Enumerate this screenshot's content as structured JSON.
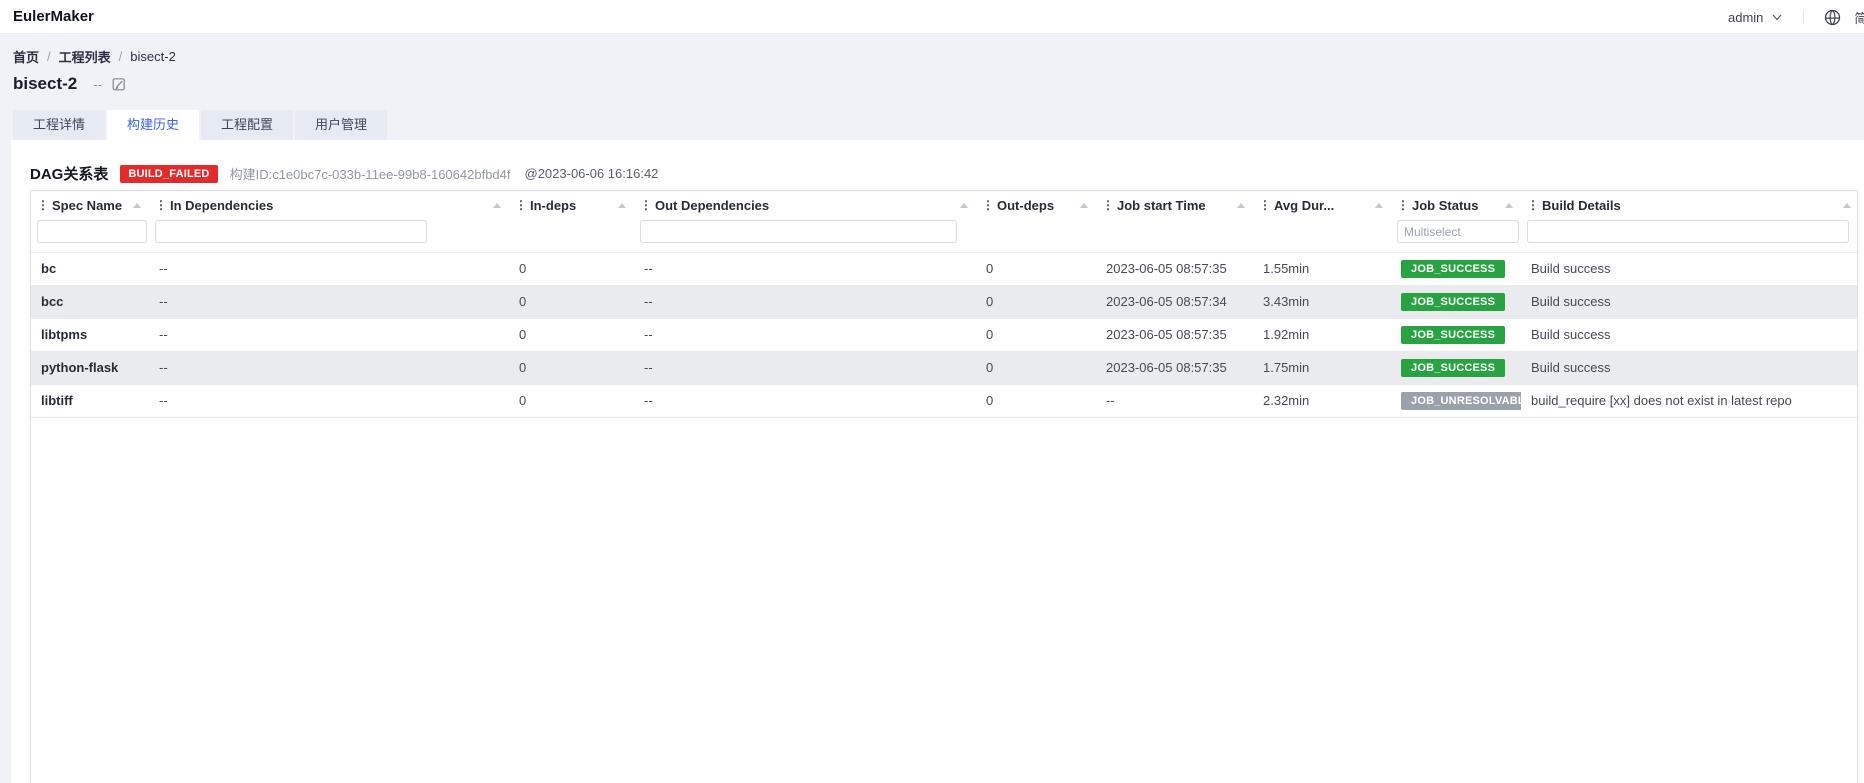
{
  "app": {
    "brand": "EulerMaker",
    "user": "admin",
    "language": "简体中文"
  },
  "breadcrumb": {
    "separator": "/",
    "items": [
      "首页",
      "工程列表",
      "bisect-2"
    ]
  },
  "page": {
    "title": "bisect-2",
    "subtitle": "--"
  },
  "tabs": [
    {
      "label": "工程详情",
      "active": false
    },
    {
      "label": "构建历史",
      "active": true
    },
    {
      "label": "工程配置",
      "active": false
    },
    {
      "label": "用户管理",
      "active": false
    }
  ],
  "section": {
    "title": "DAG关系表",
    "status_badge": "BUILD_FAILED",
    "build_id": "构建ID:c1e0bc7c-033b-11ee-99b8-160642bfbd4f",
    "timestamp": "@2023-06-06 16:16:42"
  },
  "table": {
    "columns": [
      {
        "key": "spec_name",
        "label": "Spec Name",
        "filter": "input"
      },
      {
        "key": "in_dependencies",
        "label": "In Dependencies",
        "filter": "input"
      },
      {
        "key": "in_deps",
        "label": "In-deps",
        "filter": null
      },
      {
        "key": "out_dependencies",
        "label": "Out Dependencies",
        "filter": "input"
      },
      {
        "key": "out_deps",
        "label": "Out-deps",
        "filter": null
      },
      {
        "key": "job_start_time",
        "label": "Job start Time",
        "filter": null
      },
      {
        "key": "avg_duration",
        "label": "Avg Dur...",
        "filter": null
      },
      {
        "key": "job_status",
        "label": "Job Status",
        "filter": "input",
        "placeholder": "Multiselect"
      },
      {
        "key": "build_details",
        "label": "Build Details",
        "filter": "input"
      }
    ],
    "rows": [
      {
        "spec_name": "bc",
        "in_dependencies": "--",
        "in_deps": "0",
        "out_dependencies": "--",
        "out_deps": "0",
        "job_start_time": "2023-06-05 08:57:35",
        "avg_duration": "1.55min",
        "job_status": "JOB_SUCCESS",
        "build_details": "Build success"
      },
      {
        "spec_name": "bcc",
        "in_dependencies": "--",
        "in_deps": "0",
        "out_dependencies": "--",
        "out_deps": "0",
        "job_start_time": "2023-06-05 08:57:34",
        "avg_duration": "3.43min",
        "job_status": "JOB_SUCCESS",
        "build_details": "Build success"
      },
      {
        "spec_name": "libtpms",
        "in_dependencies": "--",
        "in_deps": "0",
        "out_dependencies": "--",
        "out_deps": "0",
        "job_start_time": "2023-06-05 08:57:35",
        "avg_duration": "1.92min",
        "job_status": "JOB_SUCCESS",
        "build_details": "Build success"
      },
      {
        "spec_name": "python-flask",
        "in_dependencies": "--",
        "in_deps": "0",
        "out_dependencies": "--",
        "out_deps": "0",
        "job_start_time": "2023-06-05 08:57:35",
        "avg_duration": "1.75min",
        "job_status": "JOB_SUCCESS",
        "build_details": "Build success"
      },
      {
        "spec_name": "libtiff",
        "in_dependencies": "--",
        "in_deps": "0",
        "out_dependencies": "--",
        "out_deps": "0",
        "job_start_time": "--",
        "avg_duration": "2.32min",
        "job_status": "JOB_UNRESOLVABLE",
        "build_details": "build_require [xx] does not exist in latest repo"
      }
    ],
    "status_colors": {
      "JOB_SUCCESS": "#28a342",
      "JOB_UNRESOLVABLE": "#9aa1ab"
    }
  }
}
